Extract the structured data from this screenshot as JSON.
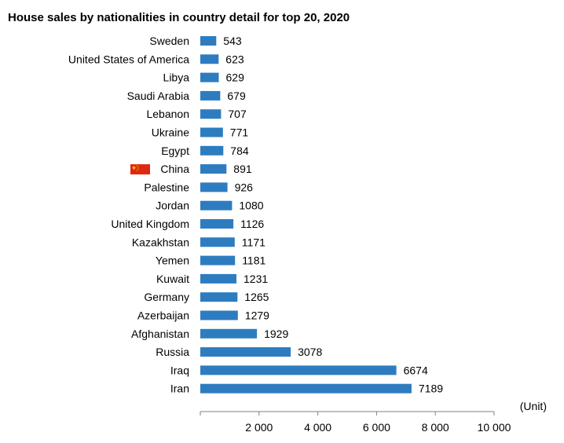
{
  "chart_data": {
    "type": "bar",
    "orientation": "horizontal",
    "title": "House sales by nationalities in country detail for top 20, 2020",
    "unit": "(Unit)",
    "xlim": [
      0,
      10000
    ],
    "xticks": [
      2000,
      4000,
      6000,
      8000,
      10000
    ],
    "xtick_labels": [
      "2 000",
      "4 000",
      "6 000",
      "8 000",
      "10 000"
    ],
    "grid": false,
    "bar_color": "#2E7CC0",
    "highlight": {
      "category": "China",
      "icon": "china-flag-icon",
      "flag_color": "#DE2910",
      "star_color": "#FFDE00"
    },
    "categories": [
      "Sweden",
      "United States of America",
      "Libya",
      "Saudi Arabia",
      "Lebanon",
      "Ukraine",
      "Egypt",
      "China",
      "Palestine",
      "Jordan",
      "United Kingdom",
      "Kazakhstan",
      "Yemen",
      "Kuwait",
      "Germany",
      "Azerbaijan",
      "Afghanistan",
      "Russia",
      "Iraq",
      "Iran"
    ],
    "values": [
      543,
      623,
      629,
      679,
      707,
      771,
      784,
      891,
      926,
      1080,
      1126,
      1171,
      1181,
      1231,
      1265,
      1279,
      1929,
      3078,
      6674,
      7189
    ],
    "value_labels": [
      "543",
      "623",
      "629",
      "679",
      "707",
      "771",
      "784",
      "891",
      "926",
      "1080",
      "1126",
      "1171",
      "1181",
      "1231",
      "1265",
      "1279",
      "1929",
      "3078",
      "6674",
      "7189"
    ]
  }
}
